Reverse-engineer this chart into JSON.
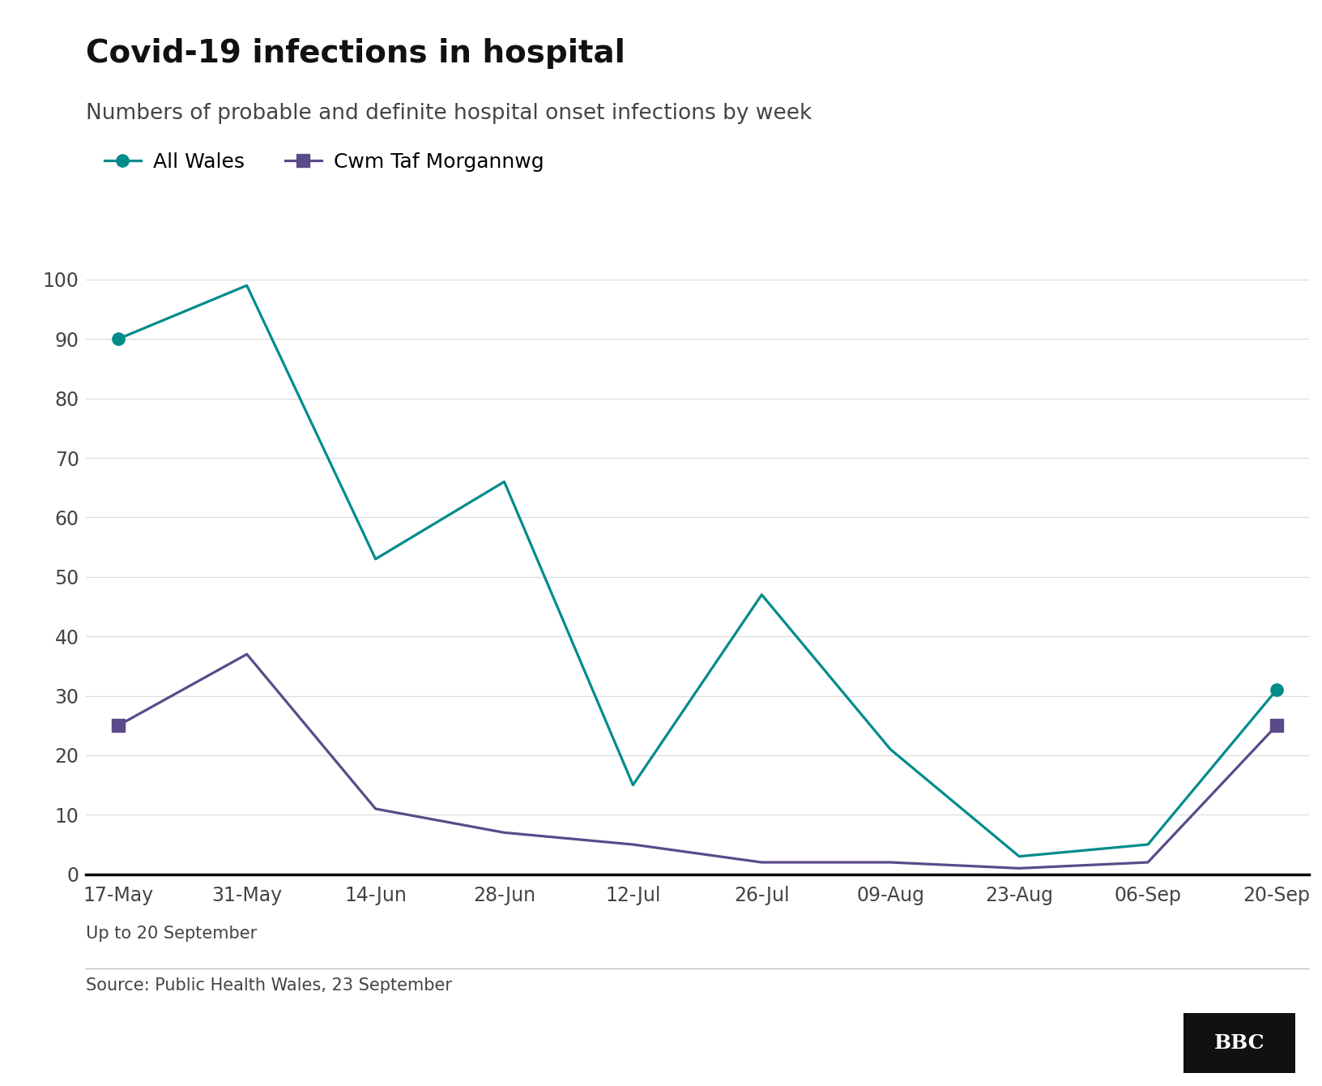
{
  "title": "Covid-19 infections in hospital",
  "subtitle": "Numbers of probable and definite hospital onset infections by week",
  "footer_note": "Up to 20 September",
  "source": "Source: Public Health Wales, 23 September",
  "x_labels": [
    "17-May",
    "31-May",
    "14-Jun",
    "28-Jun",
    "12-Jul",
    "26-Jul",
    "09-Aug",
    "23-Aug",
    "06-Sep",
    "20-Sep"
  ],
  "all_wales": [
    90,
    99,
    53,
    66,
    15,
    47,
    21,
    3,
    5,
    31
  ],
  "cwm_taf": [
    25,
    37,
    11,
    7,
    5,
    2,
    2,
    1,
    2,
    25
  ],
  "all_wales_color": "#008B8B",
  "cwm_taf_color": "#5B4A8A",
  "background_color": "#ffffff",
  "title_fontsize": 28,
  "subtitle_fontsize": 19,
  "tick_fontsize": 17,
  "legend_fontsize": 18,
  "footer_fontsize": 15,
  "source_fontsize": 15,
  "ylim": [
    0,
    105
  ],
  "yticks": [
    0,
    10,
    20,
    30,
    40,
    50,
    60,
    70,
    80,
    90,
    100
  ]
}
